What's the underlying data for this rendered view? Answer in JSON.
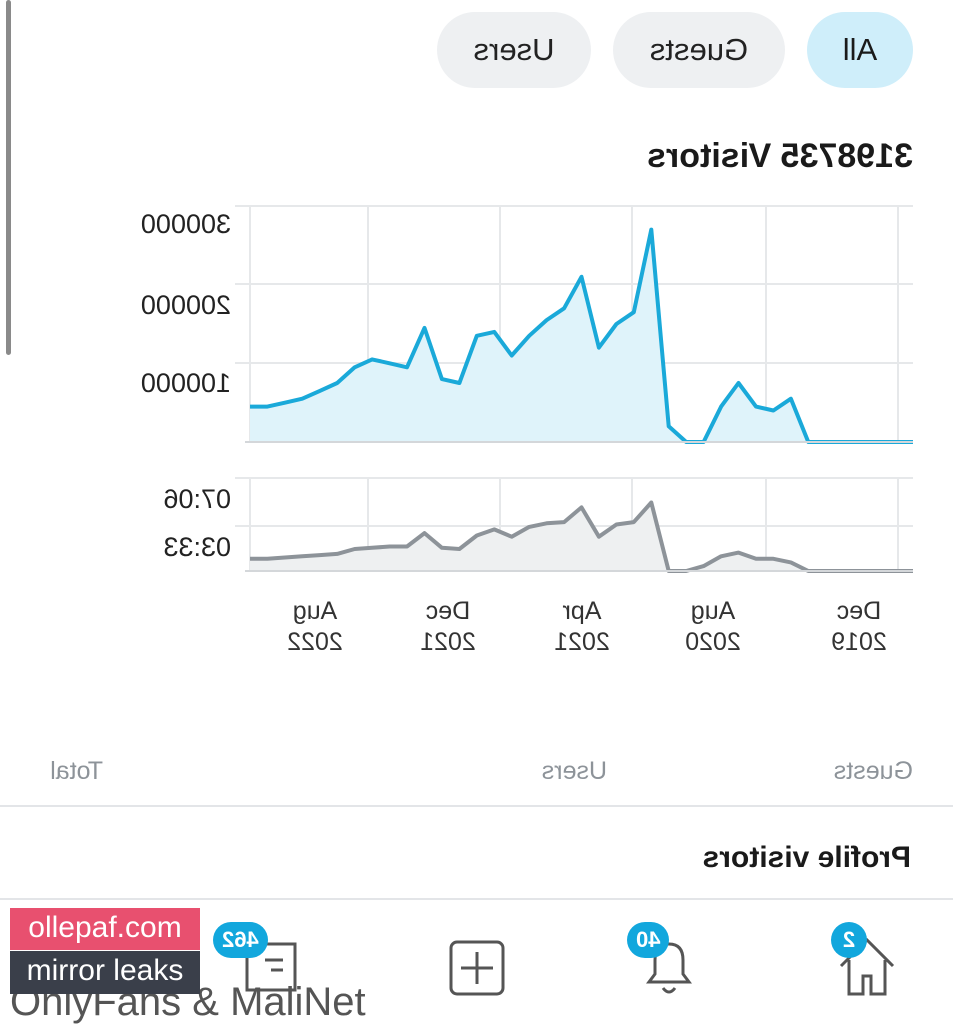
{
  "filters": {
    "all": "All",
    "guests": "Guests",
    "users": "Users"
  },
  "chart_title": "3198735 Visitors",
  "chart_data": [
    {
      "type": "area",
      "title": "3198735 Visitors",
      "y_ticks": [
        "100000",
        "200000",
        "300000"
      ],
      "ylim": [
        0,
        300000
      ],
      "x_labels": [
        {
          "month": "Dec",
          "year": "2019"
        },
        {
          "month": "Aug",
          "year": "2020"
        },
        {
          "month": "Apr",
          "year": "2021"
        },
        {
          "month": "Dec",
          "year": "2021"
        },
        {
          "month": "Aug",
          "year": "2022"
        }
      ],
      "series": [
        {
          "color": "#1aa9d9",
          "values": [
            0,
            0,
            0,
            0,
            0,
            0,
            0,
            55000,
            40000,
            45000,
            75000,
            45000,
            0,
            0,
            20000,
            270000,
            165000,
            150000,
            120000,
            210000,
            170000,
            155000,
            135000,
            110000,
            140000,
            135000,
            75000,
            80000,
            145000,
            95000,
            100000,
            105000,
            95000,
            75000,
            65000,
            55000,
            50000,
            45000,
            45000
          ]
        }
      ]
    },
    {
      "type": "area",
      "y_ticks": [
        "03:33",
        "07:06"
      ],
      "series": [
        {
          "color": "#8d9399",
          "values": [
            0,
            0,
            0,
            0,
            0,
            0,
            0,
            35,
            50,
            50,
            75,
            60,
            20,
            0,
            0,
            280,
            200,
            190,
            140,
            260,
            200,
            195,
            180,
            140,
            170,
            145,
            90,
            95,
            155,
            100,
            100,
            95,
            90,
            70,
            65,
            60,
            55,
            50,
            50
          ]
        }
      ]
    }
  ],
  "stats": {
    "guests": "Guests",
    "users": "Users",
    "total": "Total"
  },
  "profile_visitors": "Profile visitors",
  "nav": {
    "home": {
      "icon": "home-icon",
      "badge": "2"
    },
    "notifications": {
      "icon": "bell-icon",
      "badge": "40"
    },
    "create": {
      "icon": "plus-square-icon"
    },
    "messages": {
      "icon": "message-icon",
      "badge": "462"
    }
  },
  "watermark": {
    "line1": "ollepaf.com",
    "line2": "mirror leaks",
    "bg_text": "OnlyFans & MaliNet"
  }
}
